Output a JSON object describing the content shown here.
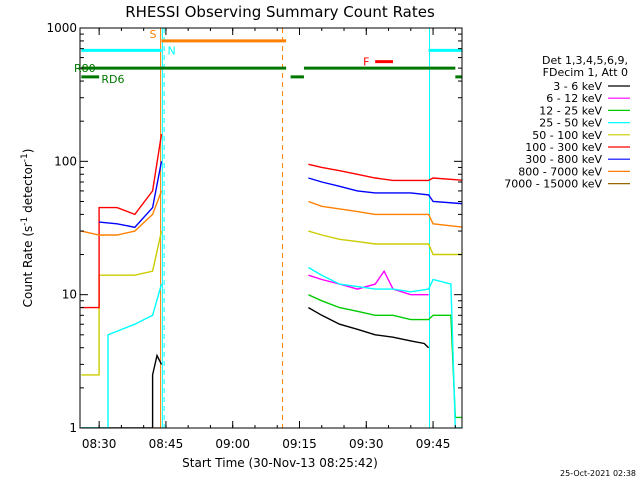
{
  "chart_data": {
    "type": "line",
    "title": "RHESSI Observing Summary Count Rates",
    "xlabel": "Start Time (30-Nov-13 08:25:42)",
    "ylabel_main": "Count Rate (s",
    "ylabel_sup1": "-1",
    "ylabel_mid": " detector",
    "ylabel_sup2": "-1",
    "ylabel_end": ")",
    "xlim_min": [
      25.7,
      111.5
    ],
    "ylim": [
      1,
      1000
    ],
    "yscale": "log",
    "x_ticks": [
      {
        "v": 30,
        "label": "08:30"
      },
      {
        "v": 45,
        "label": "08:45"
      },
      {
        "v": 60,
        "label": "09:00"
      },
      {
        "v": 75,
        "label": "09:15"
      },
      {
        "v": 90,
        "label": "09:30"
      },
      {
        "v": 105,
        "label": "09:45"
      },
      {
        "v": 120,
        "label": "10:00"
      }
    ],
    "y_ticks": [
      {
        "v": 1,
        "label": "1"
      },
      {
        "v": 10,
        "label": "10"
      },
      {
        "v": 100,
        "label": "100"
      },
      {
        "v": 1000,
        "label": "1000"
      }
    ],
    "legend_header": [
      "Det 1,3,4,5,6,9,",
      "FDecim 1, Att 0"
    ],
    "series": [
      {
        "name": "3 - 6 keV",
        "color": "#000000",
        "segments": [
          [
            [
              26,
              1
            ],
            [
              42,
              1
            ],
            [
              42,
              2.5
            ],
            [
              43,
              3.5
            ],
            [
              44,
              3
            ]
          ],
          [
            [
              77,
              8
            ],
            [
              80,
              7
            ],
            [
              84,
              6
            ],
            [
              88,
              5.5
            ],
            [
              92,
              5
            ],
            [
              96,
              4.8
            ],
            [
              100,
              4.5
            ],
            [
              103,
              4.3
            ],
            [
              104,
              4
            ]
          ]
        ]
      },
      {
        "name": "6 - 12 keV",
        "color": "#ff00ff",
        "segments": [
          [
            [
              77,
              14
            ],
            [
              80,
              13
            ],
            [
              84,
              12
            ],
            [
              88,
              11
            ],
            [
              92,
              12
            ],
            [
              94,
              15
            ],
            [
              96,
              11
            ],
            [
              100,
              10
            ],
            [
              104,
              10
            ]
          ]
        ]
      },
      {
        "name": "12 - 25 keV",
        "color": "#00cc00",
        "segments": [
          [
            [
              77,
              10
            ],
            [
              80,
              9
            ],
            [
              84,
              8
            ],
            [
              88,
              7.5
            ],
            [
              92,
              7
            ],
            [
              96,
              7
            ],
            [
              100,
              6.5
            ],
            [
              104,
              6.5
            ],
            [
              105,
              7
            ],
            [
              109,
              7
            ],
            [
              110,
              1.2
            ],
            [
              113,
              1.2
            ]
          ]
        ]
      },
      {
        "name": "25 - 50 keV",
        "color": "#00ffff",
        "segments": [
          [
            [
              26,
              1
            ],
            [
              32,
              1
            ],
            [
              32,
              5
            ],
            [
              38,
              6
            ],
            [
              42,
              7
            ],
            [
              44,
              12
            ]
          ],
          [
            [
              77,
              16
            ],
            [
              80,
              14
            ],
            [
              84,
              12
            ],
            [
              88,
              11.5
            ],
            [
              92,
              11
            ],
            [
              96,
              11
            ],
            [
              100,
              10.5
            ],
            [
              104,
              11
            ],
            [
              105,
              13
            ],
            [
              109,
              12
            ],
            [
              110,
              1
            ],
            [
              113,
              1
            ]
          ]
        ]
      },
      {
        "name": "50 - 100 keV",
        "color": "#cccc00",
        "segments": [
          [
            [
              26,
              2.5
            ],
            [
              30,
              2.5
            ],
            [
              30,
              14
            ],
            [
              34,
              14
            ],
            [
              38,
              14
            ],
            [
              42,
              15
            ],
            [
              44,
              30
            ]
          ],
          [
            [
              77,
              30
            ],
            [
              80,
              28
            ],
            [
              84,
              26
            ],
            [
              88,
              25
            ],
            [
              92,
              24
            ],
            [
              96,
              24
            ],
            [
              100,
              24
            ],
            [
              104,
              24
            ],
            [
              105,
              20
            ],
            [
              112,
              20
            ],
            [
              113,
              2.5
            ],
            [
              117,
              2.5
            ]
          ]
        ]
      },
      {
        "name": "100 - 300 keV",
        "color": "#ff0000",
        "segments": [
          [
            [
              26,
              8
            ],
            [
              30,
              8
            ],
            [
              30,
              45
            ],
            [
              34,
              45
            ],
            [
              38,
              40
            ],
            [
              42,
              60
            ],
            [
              44,
              160
            ]
          ],
          [
            [
              77,
              95
            ],
            [
              80,
              90
            ],
            [
              84,
              85
            ],
            [
              88,
              80
            ],
            [
              92,
              75
            ],
            [
              96,
              72
            ],
            [
              100,
              72
            ],
            [
              104,
              72
            ],
            [
              105,
              75
            ],
            [
              112,
              72
            ],
            [
              113,
              9
            ],
            [
              117,
              9
            ]
          ]
        ]
      },
      {
        "name": "300 - 800 keV",
        "color": "#0000ff",
        "segments": [
          [
            [
              30,
              35
            ],
            [
              34,
              34
            ],
            [
              38,
              32
            ],
            [
              42,
              45
            ],
            [
              44,
              100
            ]
          ],
          [
            [
              77,
              75
            ],
            [
              80,
              70
            ],
            [
              84,
              65
            ],
            [
              88,
              60
            ],
            [
              92,
              58
            ],
            [
              96,
              58
            ],
            [
              100,
              58
            ],
            [
              104,
              56
            ],
            [
              105,
              50
            ],
            [
              112,
              48
            ]
          ]
        ]
      },
      {
        "name": "800 - 7000 keV",
        "color": "#ff8000",
        "segments": [
          [
            [
              26,
              30
            ],
            [
              30,
              28
            ],
            [
              34,
              28
            ],
            [
              38,
              30
            ],
            [
              42,
              40
            ],
            [
              44,
              60
            ]
          ],
          [
            [
              77,
              50
            ],
            [
              80,
              46
            ],
            [
              84,
              44
            ],
            [
              88,
              42
            ],
            [
              92,
              40
            ],
            [
              96,
              40
            ],
            [
              100,
              40
            ],
            [
              104,
              40
            ],
            [
              105,
              34
            ],
            [
              112,
              32
            ],
            [
              113,
              32
            ],
            [
              117,
              32
            ]
          ]
        ]
      },
      {
        "name": "7000 - 15000 keV",
        "color": "#996600",
        "segments": [
          [
            [
              42,
              1
            ],
            [
              44,
              1
            ]
          ]
        ]
      }
    ],
    "bars": [
      {
        "label": "S",
        "color": "#ff8000",
        "y": 800,
        "x0": 44,
        "x1": 72
      },
      {
        "label": "N",
        "color": "#00ffff",
        "y": 680,
        "x0": 26,
        "x1": 44
      },
      {
        "label": "",
        "color": "#00ffff",
        "y": 680,
        "x0": 104,
        "x1": 117
      },
      {
        "label": "F",
        "color": "#ff0000",
        "y": 560,
        "x0": 92,
        "x1": 96
      },
      {
        "label": "R80",
        "color": "#007700",
        "y": 500,
        "x0": 26,
        "x1": 72
      },
      {
        "label": "",
        "color": "#007700",
        "y": 500,
        "x0": 76,
        "x1": 110
      },
      {
        "label": "RD6",
        "color": "#007700",
        "y": 430,
        "x0": 26,
        "x1": 30
      },
      {
        "label": "",
        "color": "#007700",
        "y": 430,
        "x0": 73,
        "x1": 76
      },
      {
        "label": "",
        "color": "#007700",
        "y": 430,
        "x0": 110,
        "x1": 117
      }
    ],
    "vlines": [
      {
        "x": 43.8,
        "color": "#ff8000",
        "style": "solid"
      },
      {
        "x": 44.2,
        "color": "#00ffff",
        "style": "solid"
      },
      {
        "x": 44.6,
        "color": "#00ffff",
        "style": "dashed"
      },
      {
        "x": 71.2,
        "color": "#ff8000",
        "style": "dashed"
      },
      {
        "x": 104.2,
        "color": "#00ffff",
        "style": "solid"
      },
      {
        "x": 117.2,
        "color": "#00ffff",
        "style": "dashed"
      }
    ]
  },
  "timestamp": "25-Oct-2021 02:38"
}
